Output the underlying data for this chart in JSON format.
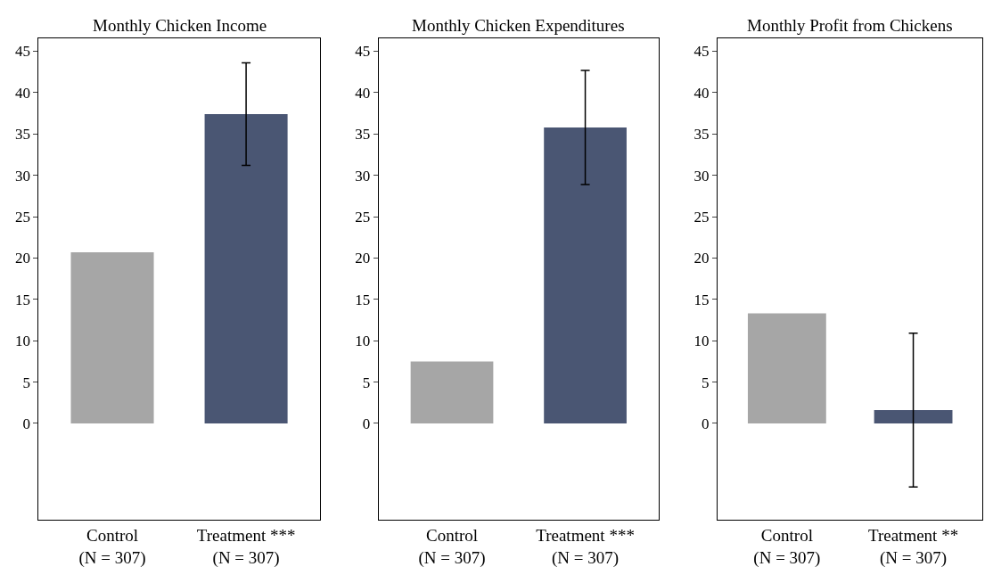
{
  "chart_data": [
    {
      "type": "bar",
      "title": "Monthly Chicken Income",
      "categories": [
        "Control\n(N = 307)",
        "Treatment ***\n(N = 307)"
      ],
      "values": [
        20.7,
        37.4
      ],
      "colors": [
        "#a6a6a6",
        "#4a5673"
      ],
      "errors": [
        null,
        6.2
      ],
      "ylim": [
        -11.7,
        46.6
      ],
      "yticks": [
        0,
        5,
        10,
        15,
        20,
        25,
        30,
        35,
        40,
        45
      ]
    },
    {
      "type": "bar",
      "title": "Monthly Chicken Expenditures",
      "categories": [
        "Control\n(N = 307)",
        "Treatment ***\n(N = 307)"
      ],
      "values": [
        7.5,
        35.8
      ],
      "colors": [
        "#a6a6a6",
        "#4a5673"
      ],
      "errors": [
        null,
        6.9
      ],
      "ylim": [
        -11.7,
        46.6
      ],
      "yticks": [
        0,
        5,
        10,
        15,
        20,
        25,
        30,
        35,
        40,
        45
      ]
    },
    {
      "type": "bar",
      "title": "Monthly Profit from Chickens",
      "categories": [
        "Control\n(N = 307)",
        "Treatment **\n(N = 307)"
      ],
      "values": [
        13.3,
        1.6
      ],
      "colors": [
        "#a6a6a6",
        "#4a5673"
      ],
      "errors": [
        null,
        9.3
      ],
      "ylim": [
        -11.7,
        46.6
      ],
      "yticks": [
        0,
        5,
        10,
        15,
        20,
        25,
        30,
        35,
        40,
        45
      ]
    }
  ]
}
